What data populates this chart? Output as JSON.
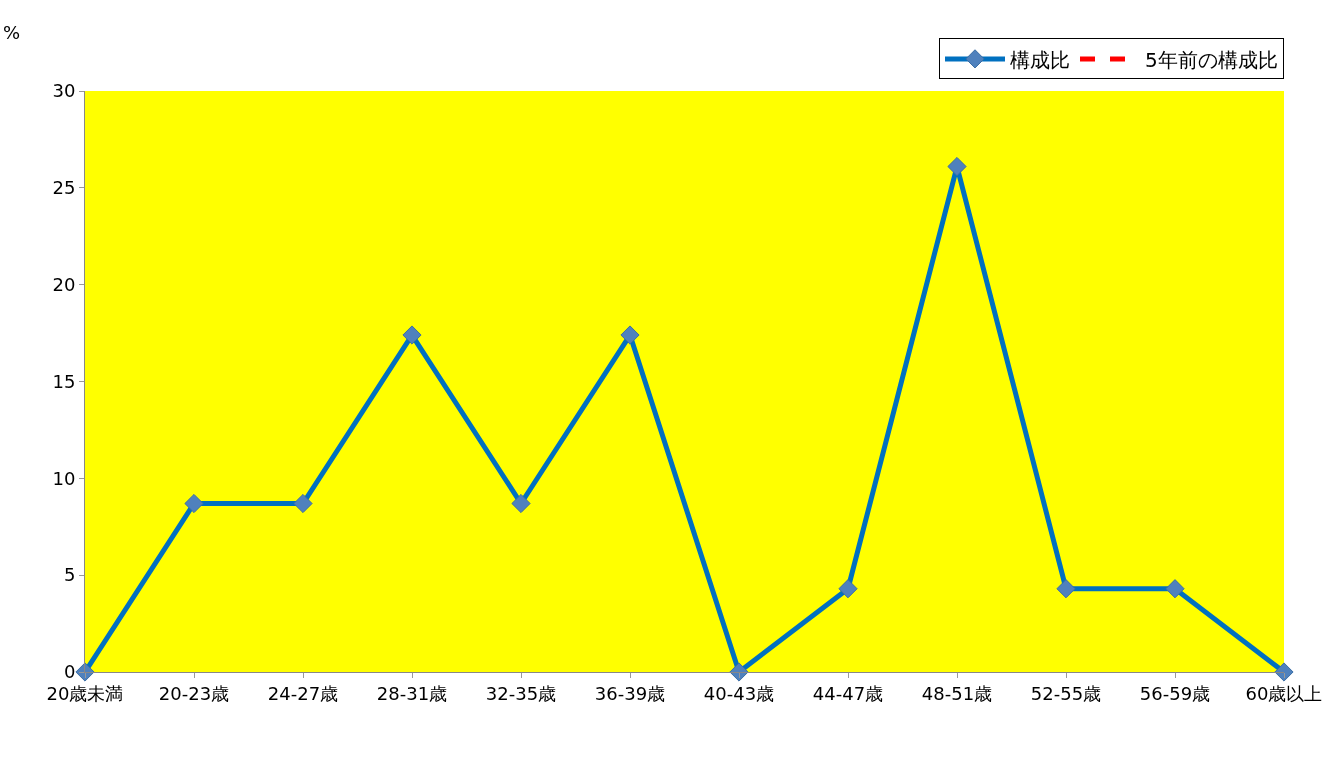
{
  "chart_data": {
    "type": "line",
    "ylabel": "%",
    "categories": [
      "20歳未満",
      "20-23歳",
      "24-27歳",
      "28-31歳",
      "32-35歳",
      "36-39歳",
      "40-43歳",
      "44-47歳",
      "48-51歳",
      "52-55歳",
      "56-59歳",
      "60歳以上"
    ],
    "series": [
      {
        "name": "構成比",
        "color": "#0070c0",
        "marker": "diamond",
        "line_style": "solid",
        "values": [
          0,
          8.7,
          8.7,
          17.4,
          8.7,
          17.4,
          0,
          4.3,
          26.1,
          4.3,
          4.3,
          0
        ]
      },
      {
        "name": "5年前の構成比",
        "color": "#ff0000",
        "marker": "none",
        "line_style": "dashed",
        "values": [
          null,
          null,
          null,
          null,
          null,
          null,
          null,
          null,
          null,
          null,
          null,
          null
        ]
      }
    ],
    "ylim": [
      0,
      30
    ],
    "yticks": [
      0,
      5,
      10,
      15,
      20,
      25,
      30
    ],
    "grid": false,
    "legend": "top right"
  }
}
